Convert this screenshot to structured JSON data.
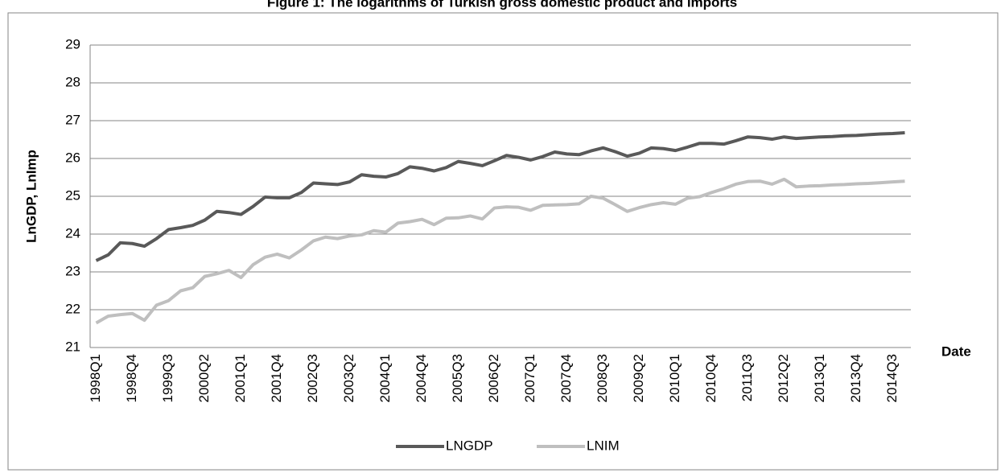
{
  "chart_data": {
    "type": "line",
    "title": "Figure 1: The logarithms of Turkish gross domestic product and imports",
    "y_label": "LnGDP, LnImp",
    "x_label": "Date",
    "categories": [
      "1998Q1",
      null,
      null,
      "1998Q4",
      null,
      null,
      "1999Q3",
      null,
      null,
      "2000Q2",
      null,
      null,
      "2001Q1",
      null,
      null,
      "2001Q4",
      null,
      null,
      "2002Q3",
      null,
      null,
      "2003Q2",
      null,
      null,
      "2004Q1",
      null,
      null,
      "2004Q4",
      null,
      null,
      "2005Q3",
      null,
      null,
      "2006Q2",
      null,
      null,
      "2007Q1",
      null,
      null,
      "2007Q4",
      null,
      null,
      "2008Q3",
      null,
      null,
      "2009Q2",
      null,
      null,
      "2010Q1",
      null,
      null,
      "2010Q4",
      null,
      null,
      "2011Q3",
      null,
      null,
      "2012Q2",
      null,
      null,
      "2013Q1",
      null,
      null,
      "2013Q4",
      null,
      null,
      "2014Q3",
      null
    ],
    "series": [
      {
        "name": "LNGDP",
        "color": "#595959",
        "values": [
          23.3,
          23.45,
          23.77,
          23.75,
          23.68,
          23.88,
          24.12,
          24.17,
          24.23,
          24.37,
          24.6,
          24.57,
          24.52,
          24.73,
          24.98,
          24.96,
          24.96,
          25.1,
          25.35,
          25.33,
          25.31,
          25.38,
          25.57,
          25.53,
          25.51,
          25.6,
          25.78,
          25.74,
          25.67,
          25.76,
          25.92,
          25.87,
          25.81,
          25.94,
          26.08,
          26.03,
          25.96,
          26.05,
          26.17,
          26.12,
          26.1,
          26.2,
          26.28,
          26.18,
          26.06,
          26.14,
          26.28,
          26.26,
          26.21,
          26.3,
          26.4,
          26.4,
          26.38,
          26.47,
          26.57,
          26.55,
          26.51,
          26.57,
          26.53,
          26.55,
          26.57,
          26.58,
          26.6,
          26.61,
          26.63,
          26.65,
          26.66,
          26.68
        ]
      },
      {
        "name": "LNIM",
        "color": "#bfbfbf",
        "values": [
          21.65,
          21.83,
          21.87,
          21.9,
          21.72,
          22.12,
          22.24,
          22.5,
          22.58,
          22.88,
          22.95,
          23.04,
          22.85,
          23.19,
          23.39,
          23.47,
          23.37,
          23.58,
          23.82,
          23.92,
          23.88,
          23.95,
          23.98,
          24.09,
          24.05,
          24.29,
          24.33,
          24.39,
          24.25,
          24.42,
          24.43,
          24.48,
          24.4,
          24.69,
          24.72,
          24.71,
          24.63,
          24.76,
          24.77,
          24.78,
          24.8,
          25.0,
          24.95,
          24.78,
          24.6,
          24.7,
          24.78,
          24.83,
          24.79,
          24.95,
          24.99,
          25.1,
          25.2,
          25.32,
          25.39,
          25.4,
          25.32,
          25.45,
          25.25,
          25.27,
          25.28,
          25.3,
          25.31,
          25.33,
          25.34,
          25.36,
          25.38,
          25.4
        ]
      }
    ],
    "ylim": [
      21,
      29
    ],
    "yticks": [
      21,
      22,
      23,
      24,
      25,
      26,
      27,
      28,
      29
    ],
    "grid": true,
    "legend": "bottom"
  }
}
